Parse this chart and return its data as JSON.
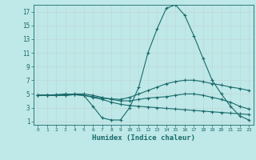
{
  "xlabel": "Humidex (Indice chaleur)",
  "background_color": "#bfe8e8",
  "grid_color": "#d8d8d8",
  "line_color": "#1a6b6b",
  "xlim": [
    -0.5,
    23.5
  ],
  "ylim": [
    0.5,
    18
  ],
  "xticks": [
    0,
    1,
    2,
    3,
    4,
    5,
    6,
    7,
    8,
    9,
    10,
    11,
    12,
    13,
    14,
    15,
    16,
    17,
    18,
    19,
    20,
    21,
    22,
    23
  ],
  "yticks": [
    1,
    3,
    5,
    7,
    9,
    11,
    13,
    15,
    17
  ],
  "series": [
    [
      4.8,
      4.8,
      4.8,
      4.8,
      4.9,
      4.8,
      3.2,
      1.5,
      1.2,
      1.2,
      3.0,
      6.0,
      11.0,
      14.5,
      17.5,
      18.0,
      16.5,
      13.5,
      10.2,
      7.0,
      5.0,
      3.2,
      1.8,
      1.2
    ],
    [
      4.8,
      4.8,
      4.8,
      4.8,
      4.9,
      4.8,
      4.6,
      4.4,
      4.3,
      4.2,
      4.5,
      5.0,
      5.5,
      6.0,
      6.5,
      6.8,
      7.0,
      7.0,
      6.8,
      6.5,
      6.3,
      6.0,
      5.8,
      5.5
    ],
    [
      4.8,
      4.8,
      4.8,
      4.9,
      5.0,
      5.0,
      4.8,
      4.5,
      4.2,
      4.0,
      4.0,
      4.2,
      4.4,
      4.5,
      4.6,
      4.8,
      5.0,
      5.0,
      4.8,
      4.5,
      4.2,
      3.8,
      3.2,
      2.8
    ],
    [
      4.8,
      4.8,
      4.9,
      5.0,
      4.9,
      4.8,
      4.5,
      4.2,
      3.8,
      3.5,
      3.3,
      3.2,
      3.1,
      3.0,
      2.9,
      2.8,
      2.7,
      2.6,
      2.5,
      2.4,
      2.3,
      2.2,
      2.1,
      2.0
    ]
  ],
  "marker": "+",
  "markersize": 3,
  "linewidth": 0.8
}
